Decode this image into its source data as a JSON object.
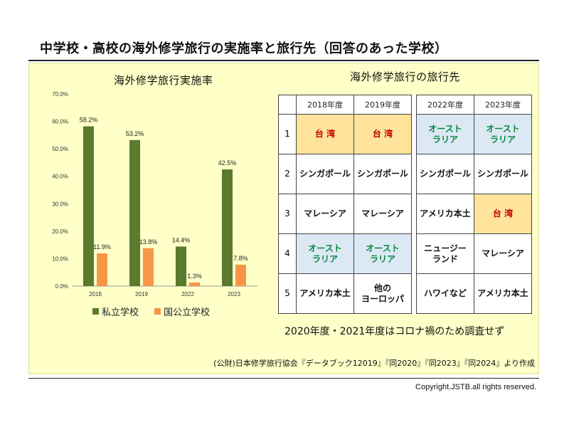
{
  "title": "中学校・高校の海外修学旅行の実施率と旅行先（回答のあった学校）",
  "chart_data": {
    "type": "bar",
    "title": "海外修学旅行実施率",
    "categories": [
      "2018",
      "2019",
      "2022",
      "2023"
    ],
    "series": [
      {
        "name": "私立学校",
        "values": [
          58.2,
          53.2,
          14.4,
          42.5
        ],
        "labels": [
          "58.2%",
          "53.2%",
          "14.4%",
          "42.5%"
        ],
        "color": "#5b7a2e"
      },
      {
        "name": "国公立学校",
        "values": [
          11.9,
          13.8,
          1.3,
          7.8
        ],
        "labels": [
          "11.9%",
          "13.8%",
          "1.3%",
          "7.8%"
        ],
        "color": "#f79646"
      }
    ],
    "ylim": [
      0,
      70
    ],
    "yticks": [
      "0.0%",
      "10.0%",
      "20.0%",
      "30.0%",
      "40.0%",
      "50.0%",
      "60.0%",
      "70.0%"
    ],
    "xlabel": "",
    "ylabel": "",
    "grid": false,
    "legend_position": "bottom"
  },
  "table": {
    "title": "海外修学旅行の旅行先",
    "headers": [
      "2018年度",
      "2019年度",
      "2022年度",
      "2023年度"
    ],
    "rows": [
      {
        "rank": "1",
        "cells": [
          {
            "text": "台 湾",
            "color": "red",
            "bg": "orange"
          },
          {
            "text": "台 湾",
            "color": "red",
            "bg": "orange"
          },
          {
            "text": "オースト\nラリア",
            "color": "green",
            "bg": "blue"
          },
          {
            "text": "オースト\nラリア",
            "color": "green",
            "bg": "blue"
          }
        ]
      },
      {
        "rank": "2",
        "cells": [
          {
            "text": "シンガポール",
            "color": "black",
            "bg": "white"
          },
          {
            "text": "シンガポール",
            "color": "black",
            "bg": "white"
          },
          {
            "text": "シンガポール",
            "color": "black",
            "bg": "white"
          },
          {
            "text": "シンガポール",
            "color": "black",
            "bg": "white"
          }
        ]
      },
      {
        "rank": "3",
        "cells": [
          {
            "text": "マレーシア",
            "color": "black",
            "bg": "white"
          },
          {
            "text": "マレーシア",
            "color": "black",
            "bg": "white"
          },
          {
            "text": "アメリカ本土",
            "color": "black",
            "bg": "white"
          },
          {
            "text": "台 湾",
            "color": "red",
            "bg": "orange"
          }
        ]
      },
      {
        "rank": "4",
        "cells": [
          {
            "text": "オースト\nラリア",
            "color": "green",
            "bg": "blue"
          },
          {
            "text": "オースト\nラリア",
            "color": "green",
            "bg": "blue"
          },
          {
            "text": "ニュージー\nランド",
            "color": "black",
            "bg": "white"
          },
          {
            "text": "マレーシア",
            "color": "black",
            "bg": "white"
          }
        ]
      },
      {
        "rank": "5",
        "cells": [
          {
            "text": "アメリカ本土",
            "color": "black",
            "bg": "white"
          },
          {
            "text": "他の\nヨーロッパ",
            "color": "black",
            "bg": "white"
          },
          {
            "text": "ハワイなど",
            "color": "black",
            "bg": "white"
          },
          {
            "text": "アメリカ本土",
            "color": "black",
            "bg": "white"
          }
        ]
      }
    ]
  },
  "note": "2020年度・2021年度はコロナ禍のため調査せず",
  "source": "(公財)日本修学旅行協会『データブック12019』『同2020』『同2023』『同2024』より作成",
  "copyright": "Copyright.JSTB.all rights reserved."
}
